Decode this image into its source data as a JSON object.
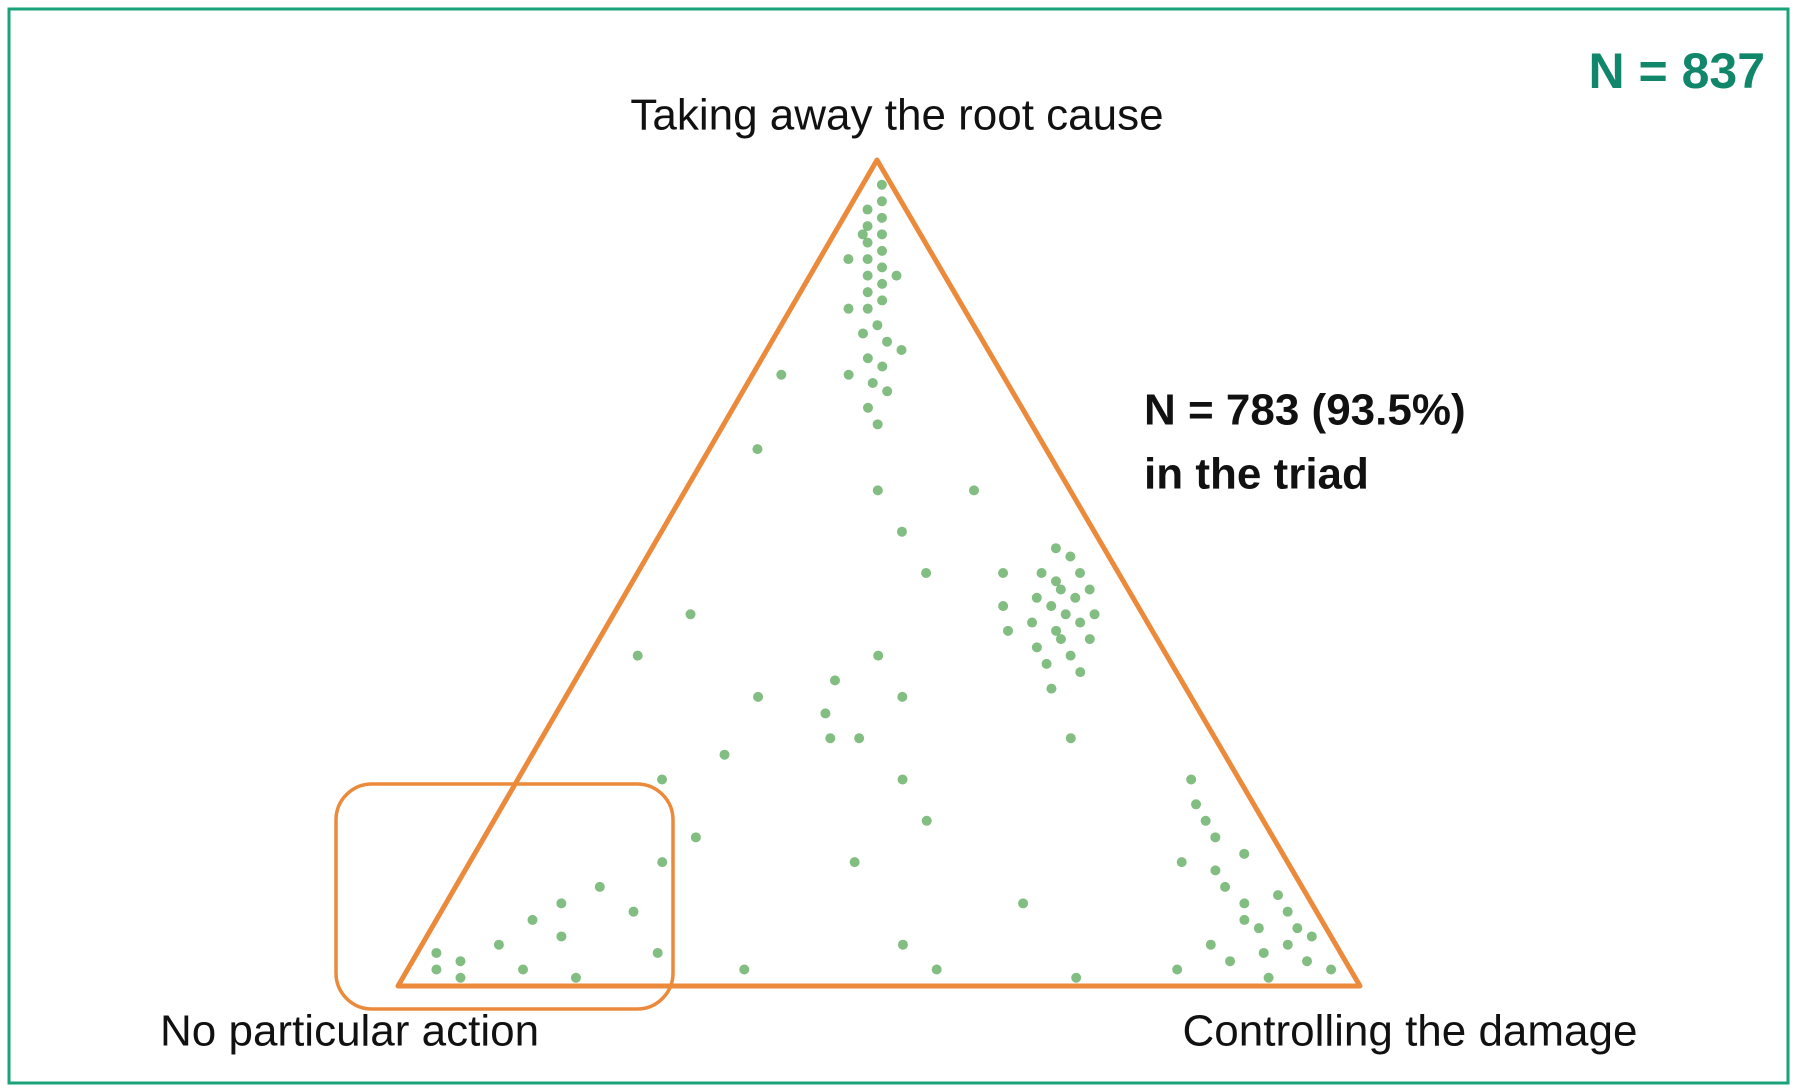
{
  "chart_data": {
    "type": "ternary",
    "labels": {
      "top": "Taking away the root cause",
      "left": "No particular action",
      "right": "Controlling the damage"
    },
    "annotations": {
      "total": "N = 837",
      "inside": "N = 783 (93.5%)",
      "inside_note": "in the triad"
    },
    "color": "#3f9a3f",
    "triangle_color": "#ec8a3c",
    "points": {
      "top": [
        0.97,
        0.95,
        0.94,
        0.93,
        0.92,
        0.91,
        0.9,
        0.89,
        0.88,
        0.87,
        0.86,
        0.85,
        0.84,
        0.83,
        0.82,
        0.8,
        0.79,
        0.78,
        0.76,
        0.75,
        0.73,
        0.72,
        0.7,
        0.68,
        0.91,
        0.88,
        0.86,
        0.82,
        0.77,
        0.74,
        0.5,
        0.48,
        0.47,
        0.45,
        0.44,
        0.46,
        0.49,
        0.43,
        0.42,
        0.5,
        0.52,
        0.4,
        0.41,
        0.47,
        0.44,
        0.38,
        0.53,
        0.45,
        0.48,
        0.42,
        0.39,
        0.36,
        0.46,
        0.5,
        0.43,
        0.07,
        0.05,
        0.03,
        0.08,
        0.1,
        0.04,
        0.02,
        0.06,
        0.12,
        0.09,
        0.01,
        0.03,
        0.14,
        0.05,
        0.02,
        0.07,
        0.11,
        0.16,
        0.18,
        0.2,
        0.22,
        0.25,
        0.15,
        0.02,
        0.03,
        0.01,
        0.04,
        0.05,
        0.08,
        0.1,
        0.06,
        0.12,
        0.02,
        0.01,
        0.15,
        0.18,
        0.09,
        0.04,
        0.5,
        0.4,
        0.3,
        0.35,
        0.35,
        0.3,
        0.25,
        0.2,
        0.15,
        0.05,
        0.02,
        0.01,
        0.6,
        0.55,
        0.65,
        0.45,
        0.4,
        0.6,
        0.3,
        0.1,
        0.02,
        0.25,
        0.28,
        0.33,
        0.37,
        0.74
      ],
      "right": [
        0.02,
        0.03,
        0.02,
        0.04,
        0.03,
        0.05,
        0.04,
        0.06,
        0.05,
        0.07,
        0.06,
        0.08,
        0.07,
        0.09,
        0.08,
        0.1,
        0.09,
        0.12,
        0.11,
        0.13,
        0.13,
        0.15,
        0.14,
        0.16,
        0.03,
        0.03,
        0.09,
        0.06,
        0.14,
        0.1,
        0.46,
        0.48,
        0.47,
        0.5,
        0.49,
        0.45,
        0.44,
        0.47,
        0.51,
        0.42,
        0.44,
        0.5,
        0.46,
        0.43,
        0.44,
        0.52,
        0.42,
        0.47,
        0.45,
        0.48,
        0.48,
        0.5,
        0.4,
        0.38,
        0.42,
        0.86,
        0.9,
        0.93,
        0.84,
        0.83,
        0.88,
        0.96,
        0.92,
        0.8,
        0.88,
        0.9,
        0.85,
        0.78,
        0.82,
        0.8,
        0.9,
        0.86,
        0.8,
        0.76,
        0.74,
        0.72,
        0.7,
        0.74,
        0.03,
        0.05,
        0.06,
        0.02,
        0.08,
        0.1,
        0.12,
        0.14,
        0.15,
        0.12,
        0.18,
        0.2,
        0.22,
        0.2,
        0.25,
        0.3,
        0.3,
        0.3,
        0.2,
        0.35,
        0.33,
        0.4,
        0.45,
        0.4,
        0.5,
        0.55,
        0.7,
        0.2,
        0.25,
        0.05,
        0.08,
        0.05,
        0.3,
        0.55,
        0.6,
        0.35,
        0.15,
        0.2,
        0.28,
        0.27,
        0.03
      ]
    }
  }
}
